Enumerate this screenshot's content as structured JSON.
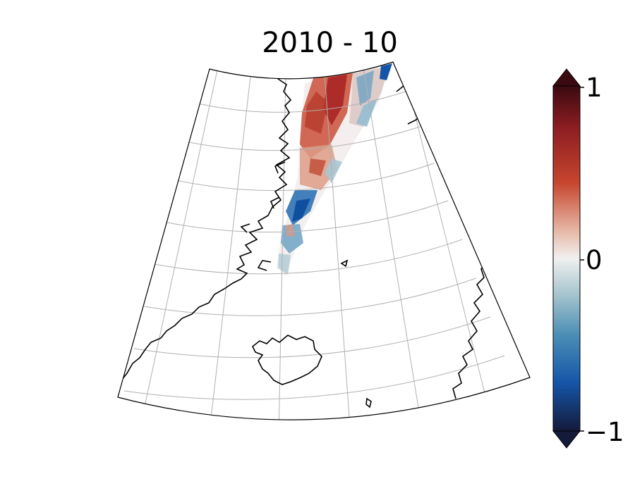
{
  "title": "2010 - 10",
  "colorbar": {
    "tick_labels": [
      "1",
      "0",
      "−1"
    ],
    "ticks": [
      1,
      0,
      -1
    ],
    "range": [
      -1,
      1
    ],
    "extend": "both",
    "colormap": "diverging blue-white-red",
    "colors": {
      "max_extend": "#3a0a10",
      "high": "#b8322a",
      "mid_high": "#e8b9a6",
      "zero": "#f0f0f0",
      "mid_low": "#8fb8c8",
      "low": "#1555a8",
      "min_extend": "#141a3a"
    }
  },
  "map": {
    "projection": "conic (North Atlantic / Greenland Sea)",
    "gridlines": true,
    "coastlines": true,
    "regions_shown": [
      "Greenland east coast",
      "Iceland",
      "Jan Mayen",
      "Norway coast"
    ],
    "field": "anomaly band along East Greenland margin",
    "field_pattern": [
      "red anomalies in north",
      "blue anomalies near Greenland coast and north-east tip"
    ]
  }
}
